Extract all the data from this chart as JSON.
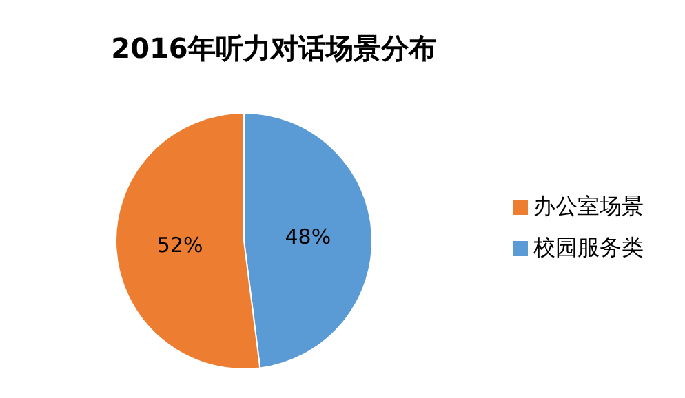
{
  "chart_data": {
    "type": "pie",
    "title": "2016年听力对话场景分布",
    "categories": [
      "校园服务类",
      "办公室场景"
    ],
    "values": [
      48,
      52
    ],
    "colors": [
      "#5b9bd5",
      "#ed7d31"
    ],
    "value_labels": [
      "48%",
      "52%"
    ],
    "legend": "right"
  }
}
